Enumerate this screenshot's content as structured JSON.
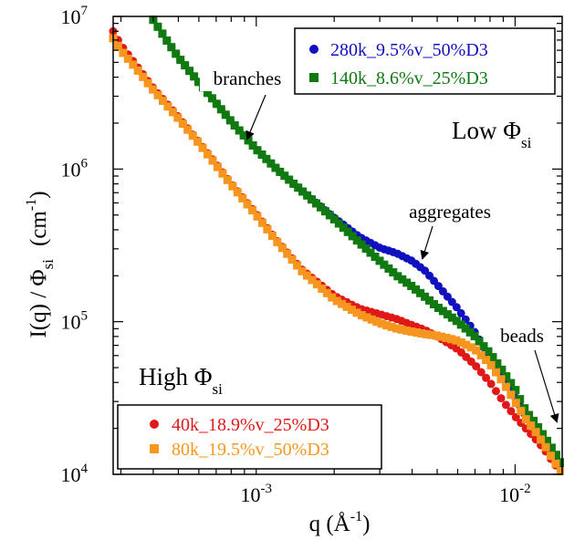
{
  "chart_data": {
    "type": "scatter",
    "xscale": "log",
    "yscale": "log",
    "xlim": [
      0.00028,
      0.0152
    ],
    "ylim": [
      10000,
      10000000
    ],
    "grid": false,
    "x_ticks": [
      {
        "value": 0.001,
        "base": "10",
        "exp": "-3"
      },
      {
        "value": 0.01,
        "base": "10",
        "exp": "-2"
      }
    ],
    "y_ticks": [
      {
        "value": 10000,
        "base": "10",
        "exp": "4"
      },
      {
        "value": 100000,
        "base": "10",
        "exp": "5"
      },
      {
        "value": 1000000,
        "base": "10",
        "exp": "6"
      },
      {
        "value": 10000000,
        "base": "10",
        "exp": "7"
      }
    ],
    "xlabel": {
      "main": "q (Å",
      "sup": "-1",
      "tail": ")"
    },
    "ylabel": {
      "main": "I(q) / Φ",
      "sub": "si",
      "unit": "(cm",
      "unit_sup": "-1",
      "unit_tail": ")"
    },
    "legends": [
      {
        "placement": "top-right",
        "entries": [
          "280k_9.5%v_50%D3",
          "140k_8.6%v_25%D3"
        ]
      },
      {
        "placement": "bottom-left",
        "entries": [
          "40k_18.9%v_25%D3",
          "80k_19.5%v_50%D3"
        ]
      }
    ],
    "groups": [
      {
        "label": "Low Φ",
        "sub": "si"
      },
      {
        "label": "High Φ",
        "sub": "si"
      }
    ],
    "annotations": [
      {
        "text": "branches",
        "x": 0.001,
        "y": 1200000
      },
      {
        "text": "aggregates",
        "x": 0.0042,
        "y": 220000
      },
      {
        "text": "beads",
        "x": 0.0148,
        "y": 11000
      }
    ],
    "series": [
      {
        "name": "280k_9.5%v_50%D3",
        "marker": "circle",
        "color": "#1010c0",
        "points": [
          [
            0.0004,
            9500000
          ],
          [
            0.00045,
            7000000
          ],
          [
            0.0005,
            5400000
          ],
          [
            0.0006,
            3700000
          ],
          [
            0.0007,
            2700000
          ],
          [
            0.0008,
            2050000
          ],
          [
            0.001,
            1350000
          ],
          [
            0.0012,
            1000000
          ],
          [
            0.0015,
            720000
          ],
          [
            0.002,
            480000
          ],
          [
            0.0025,
            360000
          ],
          [
            0.003,
            305000
          ],
          [
            0.0035,
            280000
          ],
          [
            0.004,
            250000
          ],
          [
            0.0045,
            215000
          ],
          [
            0.005,
            175000
          ],
          [
            0.006,
            122000
          ],
          [
            0.007,
            85000
          ],
          [
            0.008,
            58000
          ],
          [
            0.009,
            42000
          ],
          [
            0.01,
            32000
          ],
          [
            0.011,
            24000
          ],
          [
            0.012,
            20000
          ],
          [
            0.013,
            16500
          ],
          [
            0.014,
            13000
          ],
          [
            0.015,
            11000
          ]
        ]
      },
      {
        "name": "140k_8.6%v_25%D3",
        "marker": "square",
        "color": "#107a10",
        "points": [
          [
            0.0004,
            9500000
          ],
          [
            0.00045,
            7000000
          ],
          [
            0.0005,
            5400000
          ],
          [
            0.0006,
            3700000
          ],
          [
            0.0007,
            2700000
          ],
          [
            0.0008,
            2050000
          ],
          [
            0.001,
            1350000
          ],
          [
            0.0012,
            1000000
          ],
          [
            0.0015,
            720000
          ],
          [
            0.002,
            470000
          ],
          [
            0.0025,
            330000
          ],
          [
            0.003,
            250000
          ],
          [
            0.0035,
            200000
          ],
          [
            0.004,
            170000
          ],
          [
            0.0045,
            145000
          ],
          [
            0.005,
            125000
          ],
          [
            0.006,
            100000
          ],
          [
            0.007,
            80000
          ],
          [
            0.008,
            62000
          ],
          [
            0.009,
            47000
          ],
          [
            0.01,
            36000
          ],
          [
            0.011,
            26000
          ],
          [
            0.012,
            21500
          ],
          [
            0.013,
            17500
          ],
          [
            0.014,
            14500
          ],
          [
            0.015,
            12000
          ]
        ]
      },
      {
        "name": "40k_18.9%v_25%D3",
        "marker": "circle",
        "color": "#e01818",
        "points": [
          [
            0.00028,
            8000000
          ],
          [
            0.0003,
            6500000
          ],
          [
            0.00035,
            4600000
          ],
          [
            0.0004,
            3400000
          ],
          [
            0.0005,
            2200000
          ],
          [
            0.0006,
            1500000
          ],
          [
            0.0007,
            1080000
          ],
          [
            0.0008,
            800000
          ],
          [
            0.001,
            510000
          ],
          [
            0.0012,
            340000
          ],
          [
            0.0015,
            220000
          ],
          [
            0.002,
            148000
          ],
          [
            0.0025,
            122000
          ],
          [
            0.003,
            112000
          ],
          [
            0.0035,
            104000
          ],
          [
            0.004,
            95000
          ],
          [
            0.0045,
            88000
          ],
          [
            0.005,
            80000
          ],
          [
            0.006,
            66000
          ],
          [
            0.007,
            52000
          ],
          [
            0.008,
            40000
          ],
          [
            0.009,
            30000
          ],
          [
            0.01,
            24000
          ],
          [
            0.011,
            20000
          ],
          [
            0.012,
            17000
          ],
          [
            0.013,
            14500
          ],
          [
            0.014,
            12000
          ],
          [
            0.015,
            10500
          ]
        ]
      },
      {
        "name": "80k_19.5%v_50%D3",
        "marker": "square",
        "color": "#f7961e",
        "points": [
          [
            0.00028,
            7200000
          ],
          [
            0.0003,
            6000000
          ],
          [
            0.00035,
            4400000
          ],
          [
            0.0004,
            3300000
          ],
          [
            0.0005,
            2150000
          ],
          [
            0.0006,
            1480000
          ],
          [
            0.0007,
            1060000
          ],
          [
            0.0008,
            790000
          ],
          [
            0.001,
            500000
          ],
          [
            0.0012,
            335000
          ],
          [
            0.0015,
            215000
          ],
          [
            0.002,
            140000
          ],
          [
            0.0025,
            112000
          ],
          [
            0.003,
            98000
          ],
          [
            0.0035,
            90000
          ],
          [
            0.004,
            86000
          ],
          [
            0.0045,
            83000
          ],
          [
            0.005,
            81000
          ],
          [
            0.006,
            75000
          ],
          [
            0.007,
            66000
          ],
          [
            0.008,
            53000
          ],
          [
            0.009,
            40000
          ],
          [
            0.01,
            30000
          ],
          [
            0.011,
            23000
          ],
          [
            0.012,
            19000
          ],
          [
            0.013,
            15500
          ],
          [
            0.014,
            12500
          ],
          [
            0.015,
            10500
          ]
        ]
      }
    ]
  }
}
